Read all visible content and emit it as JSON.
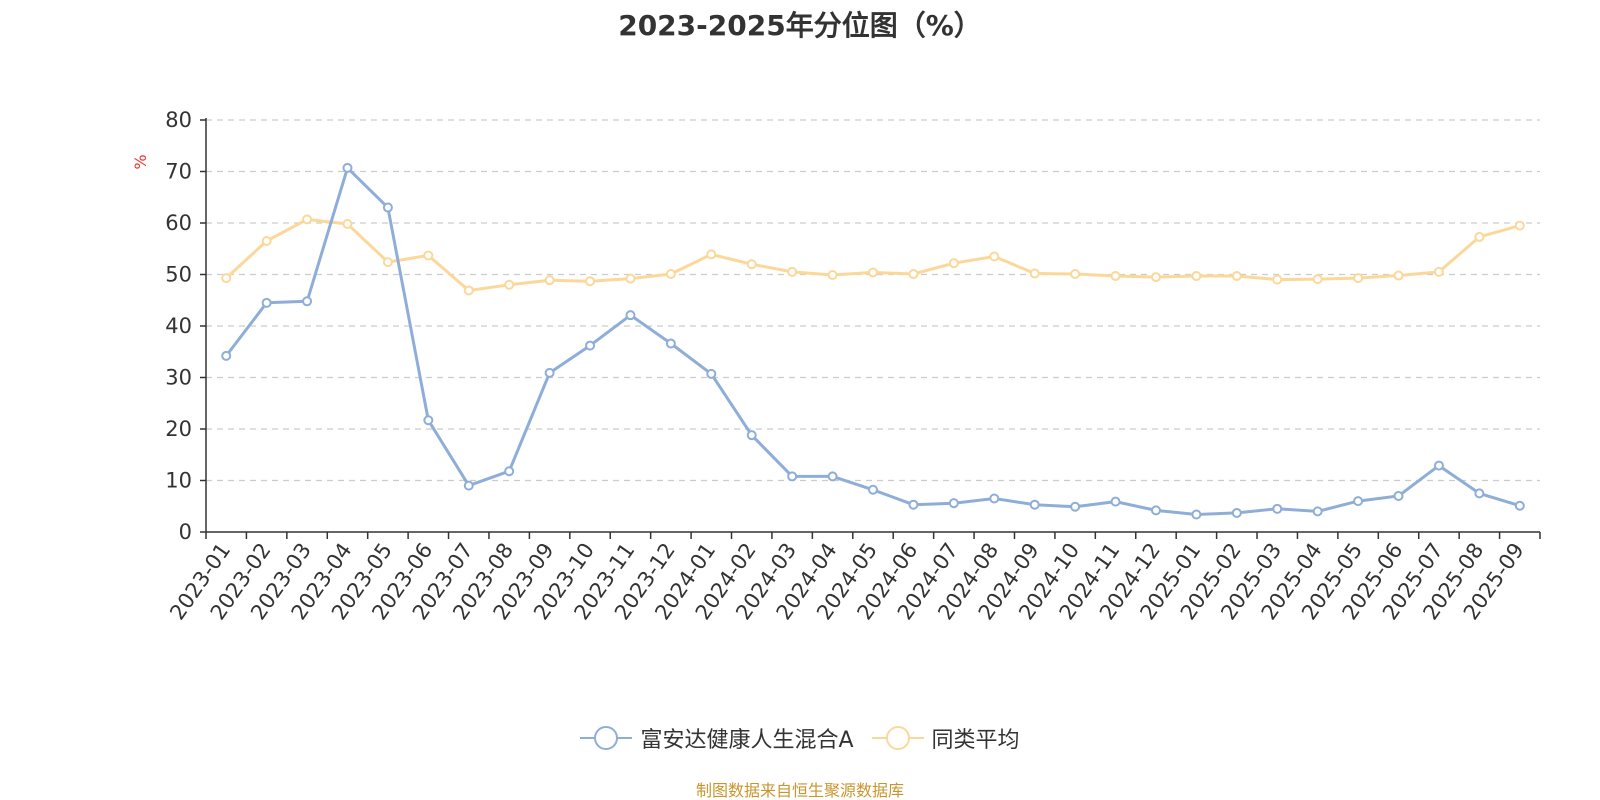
{
  "chart_data": {
    "type": "line",
    "title": "2023-2025年分位图（%）",
    "ylabel": "%",
    "xlabel": "",
    "ylim": [
      0,
      80
    ],
    "yticks": [
      0,
      10,
      20,
      30,
      40,
      50,
      60,
      70,
      80
    ],
    "grid": true,
    "legend_position": "bottom",
    "categories": [
      "2023-01",
      "2023-02",
      "2023-03",
      "2023-04",
      "2023-05",
      "2023-06",
      "2023-07",
      "2023-08",
      "2023-09",
      "2023-10",
      "2023-11",
      "2023-12",
      "2024-01",
      "2024-02",
      "2024-03",
      "2024-04",
      "2024-05",
      "2024-06",
      "2024-07",
      "2024-08",
      "2024-09",
      "2024-10",
      "2024-11",
      "2024-12",
      "2025-01",
      "2025-02",
      "2025-03",
      "2025-04",
      "2025-05",
      "2025-06",
      "2025-07",
      "2025-08",
      "2025-09"
    ],
    "series": [
      {
        "name": "富安达健康人生混合A",
        "color": "#8eaed8",
        "values": [
          34.2,
          44.5,
          44.8,
          70.7,
          63.0,
          21.7,
          9.0,
          11.8,
          30.9,
          36.2,
          42.1,
          36.6,
          30.7,
          18.8,
          10.8,
          10.8,
          8.2,
          5.3,
          5.6,
          6.5,
          5.3,
          4.9,
          5.9,
          4.2,
          3.4,
          3.7,
          4.5,
          4.0,
          6.0,
          7.0,
          12.9,
          7.5,
          5.1
        ]
      },
      {
        "name": "同类平均",
        "color": "#fbd89a",
        "values": [
          49.3,
          56.5,
          60.7,
          59.8,
          52.4,
          53.7,
          46.9,
          48.0,
          48.9,
          48.7,
          49.2,
          50.1,
          53.9,
          52.0,
          50.5,
          49.9,
          50.4,
          50.1,
          52.2,
          53.5,
          50.2,
          50.1,
          49.7,
          49.5,
          49.7,
          49.7,
          49.0,
          49.1,
          49.3,
          49.8,
          50.5,
          57.3,
          59.5
        ]
      }
    ],
    "source": "制图数据来自恒生聚源数据库",
    "colors": {
      "axis": "#333333",
      "grid": "#cccccc",
      "ylabel": "#e8342a",
      "source": "#c8962e"
    }
  }
}
